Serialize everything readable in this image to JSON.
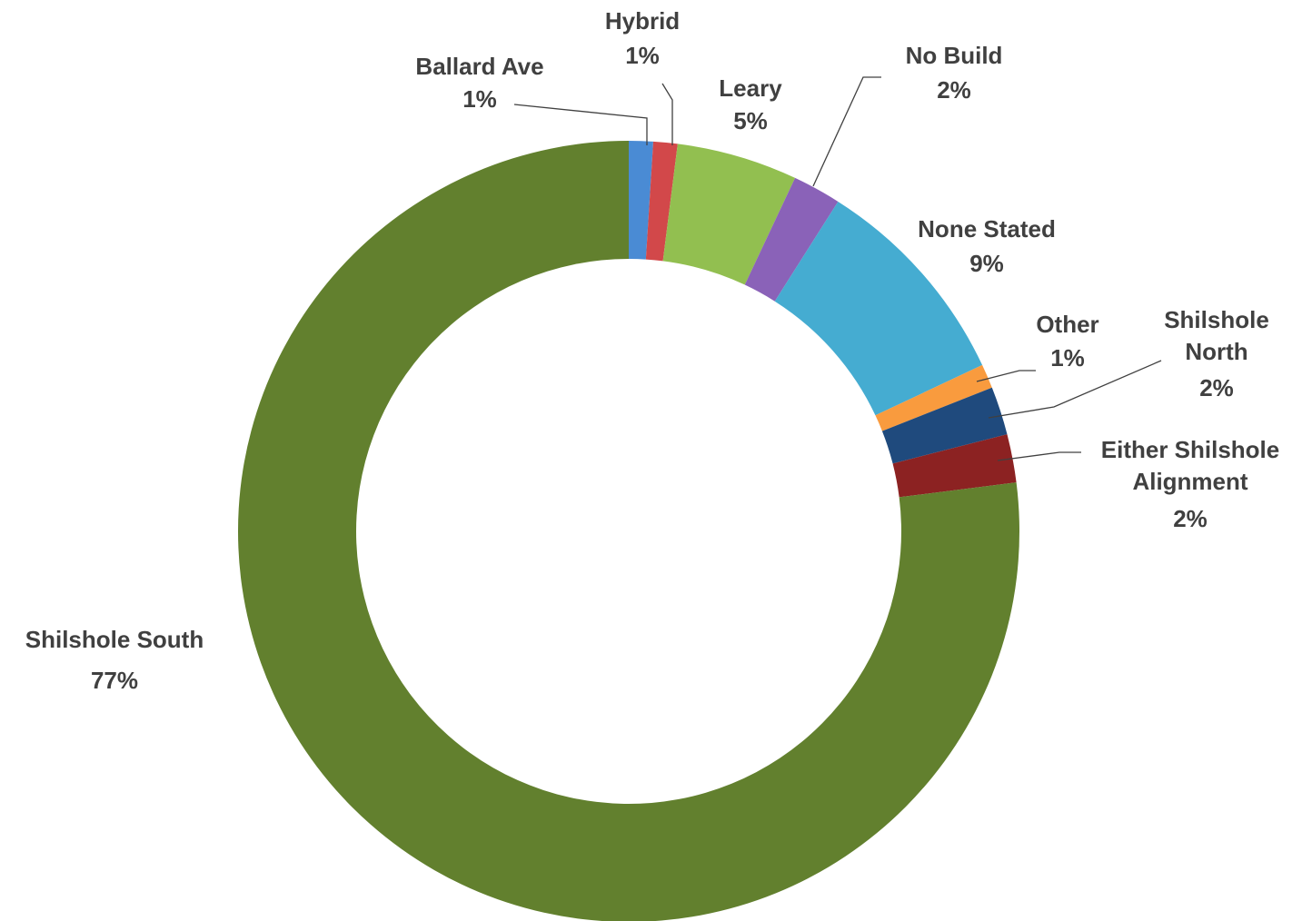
{
  "chart_data": {
    "type": "pie",
    "donut": true,
    "legend": "none",
    "title": "",
    "slices": [
      {
        "label": "Ballard Ave",
        "value": 1,
        "percent_label": "1%",
        "color": "#4a8bd4"
      },
      {
        "label": "Hybrid",
        "value": 1,
        "percent_label": "1%",
        "color": "#d2484a"
      },
      {
        "label": "Leary",
        "value": 5,
        "percent_label": "5%",
        "color": "#92bf50"
      },
      {
        "label": "No Build",
        "value": 2,
        "percent_label": "2%",
        "color": "#8a62b8"
      },
      {
        "label": "None Stated",
        "value": 9,
        "percent_label": "9%",
        "color": "#45acd1"
      },
      {
        "label": "Other",
        "value": 1,
        "percent_label": "1%",
        "color": "#f99b3e"
      },
      {
        "label": "Shilshole North",
        "value": 2,
        "percent_label": "2%",
        "color": "#1f4a7d"
      },
      {
        "label": "Either Shilshole Alignment",
        "value": 2,
        "percent_label": "2%",
        "color": "#8c2222"
      },
      {
        "label": "Shilshole South",
        "value": 77,
        "percent_label": "77%",
        "color": "#62802e"
      }
    ]
  }
}
